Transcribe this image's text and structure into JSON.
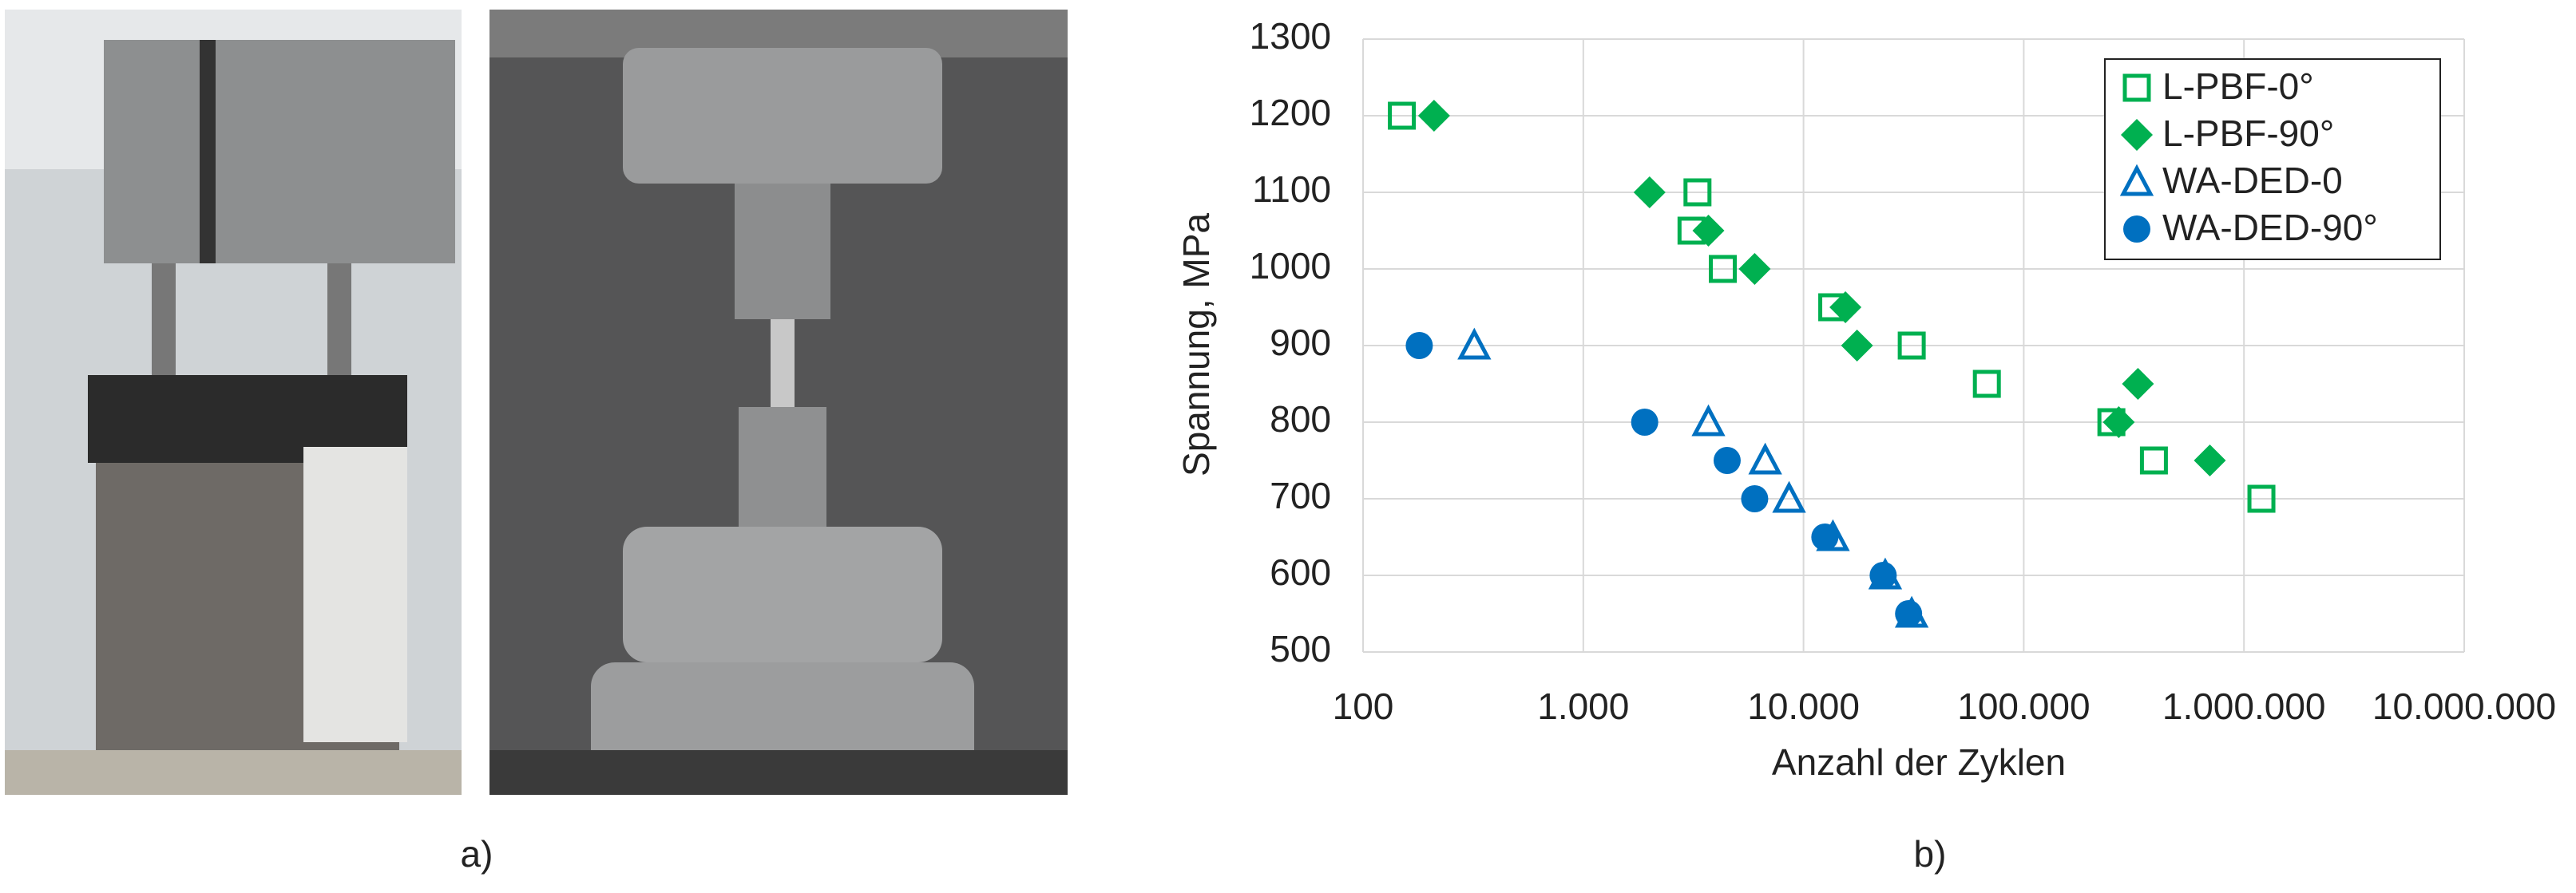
{
  "panel_labels": [
    "a)",
    "b)"
  ],
  "chart_data": {
    "type": "scatter",
    "x_label": "Anzahl der Zyklen",
    "y_label": "Spannung, MPa",
    "xscale": "log",
    "grid": true,
    "legend": "top-right",
    "xlim": [
      100,
      10000000
    ],
    "ylim": [
      500,
      1300
    ],
    "xticks": [
      100,
      {
        "value": 1000,
        "label": "1.000"
      },
      {
        "value": 10000,
        "label": "10.000"
      },
      {
        "value": 100000,
        "label": "100.000"
      },
      {
        "value": 1000000,
        "label": "1.000.000"
      },
      {
        "value": 10000000,
        "label": "10.000.000"
      }
    ],
    "yticks": [
      500,
      600,
      700,
      800,
      900,
      1000,
      1100,
      1200,
      1300
    ],
    "series": [
      {
        "name": "L-PBF-0°",
        "color": "#00b050",
        "marker": "square-open",
        "x": [
          150,
          3300,
          3100,
          4300,
          13500,
          31000,
          68000,
          250000,
          390000,
          1200000
        ],
        "values": [
          1200,
          1100,
          1050,
          1000,
          950,
          900,
          850,
          800,
          750,
          700
        ]
      },
      {
        "name": "L-PBF-90°",
        "color": "#00b050",
        "marker": "diamond",
        "x": [
          210,
          2000,
          3700,
          6000,
          15500,
          17500,
          330000,
          270000,
          700000
        ],
        "values": [
          1200,
          1100,
          1050,
          1000,
          950,
          900,
          850,
          800,
          750
        ]
      },
      {
        "name": "WA-DED-0",
        "color": "#0070c0",
        "marker": "triangle-open",
        "x": [
          320,
          3700,
          6700,
          8600,
          13600,
          23500,
          31000
        ],
        "values": [
          900,
          800,
          750,
          700,
          650,
          600,
          550
        ]
      },
      {
        "name": "WA-DED-90°",
        "color": "#0070c0",
        "marker": "circle",
        "x": [
          180,
          1900,
          4500,
          6000,
          12500,
          23000,
          30000
        ],
        "values": [
          900,
          800,
          750,
          700,
          650,
          600,
          550
        ]
      }
    ]
  }
}
